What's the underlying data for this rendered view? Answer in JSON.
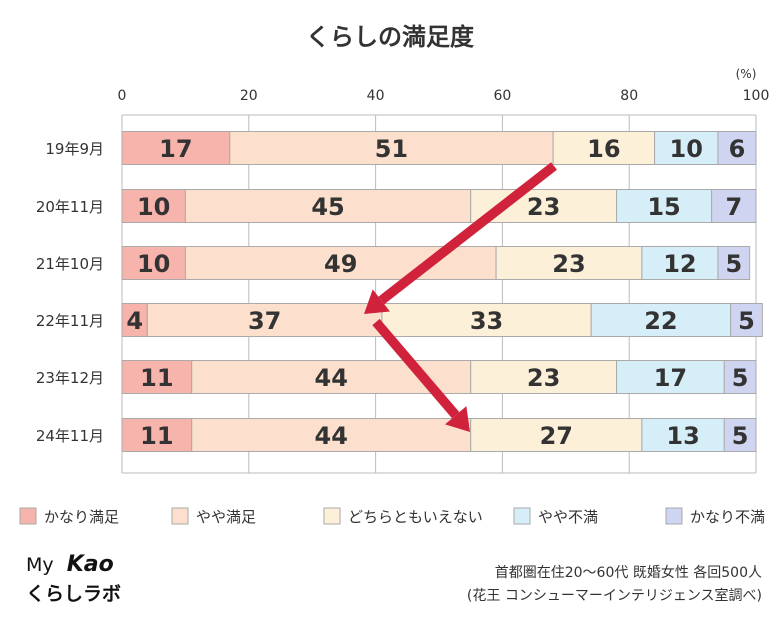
{
  "chart_data": {
    "type": "bar",
    "orientation": "horizontal-stacked",
    "title": "くらしの満足度",
    "unit": "(%)",
    "xlim": [
      0,
      100
    ],
    "xticks": [
      "0",
      "20",
      "40",
      "60",
      "80",
      "100"
    ],
    "categories": [
      "19年9月",
      "20年11月",
      "21年10月",
      "22年11月",
      "23年12月",
      "24年11月"
    ],
    "series": [
      {
        "name": "かなり満足",
        "color": "#f7b4ac",
        "values": [
          17,
          10,
          10,
          4,
          11,
          11
        ]
      },
      {
        "name": "やや満足",
        "color": "#fce0cd",
        "values": [
          51,
          45,
          49,
          37,
          44,
          44
        ]
      },
      {
        "name": "どちらともいえない",
        "color": "#fdf0d9",
        "values": [
          16,
          23,
          23,
          33,
          23,
          27
        ]
      },
      {
        "name": "やや不満",
        "color": "#d6eef8",
        "values": [
          10,
          15,
          12,
          22,
          17,
          13
        ]
      },
      {
        "name": "かなり不満",
        "color": "#cfd4f1",
        "values": [
          6,
          7,
          5,
          5,
          5,
          5
        ]
      }
    ],
    "legend_position": "bottom",
    "grid": true
  },
  "brand": {
    "line1_prefix": "My",
    "line1_logo": "Kao",
    "line2": "くらしラボ"
  },
  "notes": {
    "line1": "首都圏在住20～60代 既婚女性 各回500人",
    "line2": "(花王 コンシューマーインテリジェンス室調べ)"
  },
  "colors": {
    "arrow": "#d0223a",
    "grid": "#bbbbbb",
    "bar_border": "#aaaaaa"
  },
  "annotations": {
    "arrow_icons": [
      "arrow-down-left-icon",
      "arrow-down-right-icon"
    ]
  }
}
